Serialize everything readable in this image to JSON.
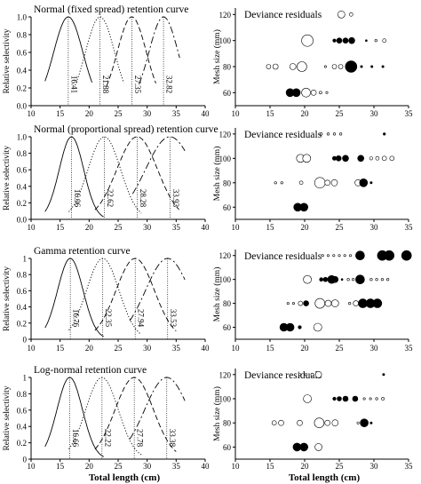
{
  "colors": {
    "ink": "#000000",
    "peak_line": "#000000",
    "axis": "#000000"
  },
  "shared": {
    "xlabel": "Total length (cm)",
    "left_ylabel": "Relative selectivity",
    "right_ylabel": "Mesh size (mm)",
    "right_title": "Deviance residuals"
  },
  "chart_data": [
    {
      "type": "line",
      "title": "Normal (fixed spread) retention curve",
      "xlabel": "",
      "ylabel": "Relative selectivity",
      "xlim": [
        10,
        40
      ],
      "ylim": [
        0,
        1.0
      ],
      "xticks": [
        10,
        15,
        20,
        25,
        30,
        35,
        40
      ],
      "yticks": [
        0,
        0.2,
        0.4,
        0.6,
        0.8,
        1.0
      ],
      "ytick_labels": [
        "0.0",
        "0.2",
        "0.4",
        "0.6",
        "0.8",
        "1.0"
      ],
      "series": [
        {
          "style": "solid",
          "mode": 16.41,
          "spread": 2.5,
          "x_range": [
            12.4,
            20.5
          ]
        },
        {
          "style": "dotted",
          "mode": 21.88,
          "spread": 2.5,
          "x_range": [
            17.6,
            26
          ]
        },
        {
          "style": "dashed",
          "mode": 27.35,
          "spread": 2.5,
          "x_range": [
            23,
            31.5
          ]
        },
        {
          "style": "dashdot",
          "mode": 32.82,
          "spread": 2.5,
          "x_range": [
            28.6,
            35.6
          ]
        }
      ],
      "peak_labels": [
        "16.41",
        "21.88",
        "27.35",
        "32.82"
      ]
    },
    {
      "type": "scatter",
      "title": "Deviance residuals",
      "xlabel": "",
      "ylabel": "Mesh size (mm)",
      "xlim": [
        10,
        35
      ],
      "ylim": [
        50,
        125
      ],
      "xticks": [
        10,
        15,
        20,
        25,
        30,
        35
      ],
      "yticks": [
        60,
        80,
        100,
        120
      ],
      "points": [
        {
          "x": 25.3,
          "y": 120,
          "r": 4,
          "sign": "pos"
        },
        {
          "x": 26.7,
          "y": 120,
          "r": 2,
          "sign": "pos"
        },
        {
          "x": 20.4,
          "y": 100,
          "r": 6.5,
          "sign": "pos"
        },
        {
          "x": 24.3,
          "y": 100,
          "r": 1.8,
          "sign": "neg"
        },
        {
          "x": 25.0,
          "y": 100,
          "r": 3,
          "sign": "neg"
        },
        {
          "x": 25.9,
          "y": 100,
          "r": 3,
          "sign": "neg"
        },
        {
          "x": 26.8,
          "y": 100,
          "r": 3.5,
          "sign": "neg"
        },
        {
          "x": 28.9,
          "y": 100,
          "r": 1,
          "sign": "neg"
        },
        {
          "x": 30.3,
          "y": 100,
          "r": 1.3,
          "sign": "pos"
        },
        {
          "x": 31.5,
          "y": 100,
          "r": 2,
          "sign": "pos"
        },
        {
          "x": 14.8,
          "y": 80,
          "r": 2.5,
          "sign": "pos"
        },
        {
          "x": 15.8,
          "y": 80,
          "r": 3,
          "sign": "pos"
        },
        {
          "x": 18.3,
          "y": 80,
          "r": 3.5,
          "sign": "pos"
        },
        {
          "x": 19.6,
          "y": 80,
          "r": 5.5,
          "sign": "pos"
        },
        {
          "x": 23.0,
          "y": 80,
          "r": 1.2,
          "sign": "pos"
        },
        {
          "x": 24.3,
          "y": 80,
          "r": 2.5,
          "sign": "pos"
        },
        {
          "x": 25.2,
          "y": 80,
          "r": 2.5,
          "sign": "pos"
        },
        {
          "x": 26.7,
          "y": 80,
          "r": 6.5,
          "sign": "neg"
        },
        {
          "x": 28.2,
          "y": 80,
          "r": 1.2,
          "sign": "neg"
        },
        {
          "x": 29.7,
          "y": 80,
          "r": 1.2,
          "sign": "neg"
        },
        {
          "x": 31.3,
          "y": 80,
          "r": 1.2,
          "sign": "neg"
        },
        {
          "x": 17.9,
          "y": 60,
          "r": 4.5,
          "sign": "neg"
        },
        {
          "x": 18.8,
          "y": 60,
          "r": 4.5,
          "sign": "neg"
        },
        {
          "x": 20.2,
          "y": 60,
          "r": 5,
          "sign": "pos"
        },
        {
          "x": 21.3,
          "y": 60,
          "r": 3,
          "sign": "pos"
        },
        {
          "x": 22.3,
          "y": 60,
          "r": 1.5,
          "sign": "pos"
        },
        {
          "x": 23.2,
          "y": 60,
          "r": 1.2,
          "sign": "pos"
        }
      ]
    },
    {
      "type": "line",
      "title": "Normal (proportional spread) retention curve",
      "xlabel": "",
      "ylabel": "Relative selectivity",
      "xlim": [
        10,
        40
      ],
      "ylim": [
        0,
        1.0
      ],
      "xticks": [
        10,
        15,
        20,
        25,
        30,
        35,
        40
      ],
      "yticks": [
        0,
        0.2,
        0.4,
        0.6,
        0.8,
        1.0
      ],
      "ytick_labels": [
        "0.0",
        "0.2",
        "0.4",
        "0.6",
        "0.8",
        "1.0"
      ],
      "series": [
        {
          "style": "solid",
          "mode": 16.96,
          "spread": 2.1,
          "x_range": [
            12.4,
            22.5
          ]
        },
        {
          "style": "dotted",
          "mode": 22.62,
          "spread": 2.8,
          "x_range": [
            16.5,
            29
          ]
        },
        {
          "style": "dashed",
          "mode": 28.28,
          "spread": 3.5,
          "x_range": [
            21,
            35.5
          ]
        },
        {
          "style": "dashdot",
          "mode": 33.93,
          "spread": 4.2,
          "x_range": [
            27.5,
            36.5
          ]
        }
      ],
      "peak_labels": [
        "16.96",
        "22.62",
        "28.28",
        "33.93"
      ]
    },
    {
      "type": "scatter",
      "title": "Deviance residuals",
      "xlabel": "",
      "ylabel": "Mesh size (mm)",
      "xlim": [
        10,
        35
      ],
      "ylim": [
        50,
        125
      ],
      "xticks": [
        10,
        15,
        20,
        25,
        30,
        35
      ],
      "yticks": [
        60,
        80,
        100,
        120
      ],
      "points": [
        {
          "x": 22.4,
          "y": 120,
          "r": 1.3,
          "sign": "pos"
        },
        {
          "x": 23.4,
          "y": 120,
          "r": 1.3,
          "sign": "pos"
        },
        {
          "x": 24.3,
          "y": 120,
          "r": 1.3,
          "sign": "pos"
        },
        {
          "x": 25.2,
          "y": 120,
          "r": 1.3,
          "sign": "pos"
        },
        {
          "x": 31.5,
          "y": 120,
          "r": 1.3,
          "sign": "neg"
        },
        {
          "x": 19.4,
          "y": 100,
          "r": 4.5,
          "sign": "pos"
        },
        {
          "x": 20.3,
          "y": 100,
          "r": 4.5,
          "sign": "pos"
        },
        {
          "x": 24.3,
          "y": 100,
          "r": 2.2,
          "sign": "neg"
        },
        {
          "x": 24.9,
          "y": 100,
          "r": 3,
          "sign": "neg"
        },
        {
          "x": 25.9,
          "y": 100,
          "r": 3.5,
          "sign": "neg"
        },
        {
          "x": 28.1,
          "y": 100,
          "r": 3.5,
          "sign": "neg"
        },
        {
          "x": 29.6,
          "y": 100,
          "r": 1.8,
          "sign": "pos"
        },
        {
          "x": 30.5,
          "y": 100,
          "r": 2,
          "sign": "pos"
        },
        {
          "x": 31.5,
          "y": 100,
          "r": 2.5,
          "sign": "pos"
        },
        {
          "x": 32.6,
          "y": 100,
          "r": 2.5,
          "sign": "pos"
        },
        {
          "x": 15.8,
          "y": 80,
          "r": 1.3,
          "sign": "pos"
        },
        {
          "x": 16.7,
          "y": 80,
          "r": 1.3,
          "sign": "pos"
        },
        {
          "x": 19.5,
          "y": 80,
          "r": 2,
          "sign": "pos"
        },
        {
          "x": 22.2,
          "y": 80,
          "r": 6,
          "sign": "pos"
        },
        {
          "x": 23.3,
          "y": 80,
          "r": 3,
          "sign": "pos"
        },
        {
          "x": 24.3,
          "y": 80,
          "r": 3.5,
          "sign": "pos"
        },
        {
          "x": 27.7,
          "y": 80,
          "r": 3.5,
          "sign": "pos"
        },
        {
          "x": 28.5,
          "y": 80,
          "r": 4.5,
          "sign": "neg"
        },
        {
          "x": 29.6,
          "y": 80,
          "r": 1.2,
          "sign": "neg"
        },
        {
          "x": 19.0,
          "y": 60,
          "r": 4.5,
          "sign": "neg"
        },
        {
          "x": 19.9,
          "y": 60,
          "r": 4.5,
          "sign": "neg"
        }
      ]
    },
    {
      "type": "line",
      "title": "Gamma retention curve",
      "xlabel": "",
      "ylabel": "Relative selectivity",
      "xlim": [
        10,
        40
      ],
      "ylim": [
        0,
        1.0
      ],
      "xticks": [
        10,
        15,
        20,
        25,
        30,
        35,
        40
      ],
      "yticks": [
        0,
        0.2,
        0.4,
        0.6,
        0.8,
        1.0
      ],
      "ytick_labels": [
        "0",
        "0.2",
        "0.4",
        "0.6",
        "0.8",
        "1"
      ],
      "series": [
        {
          "style": "solid",
          "mode": 16.76,
          "spread": 2.2,
          "x_range": [
            12.4,
            22.5
          ]
        },
        {
          "style": "dotted",
          "mode": 22.35,
          "spread": 2.8,
          "x_range": [
            16.5,
            29
          ]
        },
        {
          "style": "dashed",
          "mode": 27.94,
          "spread": 3.3,
          "x_range": [
            21,
            35
          ]
        },
        {
          "style": "dashdot",
          "mode": 33.53,
          "spread": 3.8,
          "x_range": [
            27,
            36.5
          ]
        }
      ],
      "peak_labels": [
        "16.76",
        "22.35",
        "27.94",
        "33.53"
      ]
    },
    {
      "type": "scatter",
      "title": "Deviance residuals",
      "xlabel": "",
      "ylabel": "Mesh size (mm)",
      "xlim": [
        10,
        35
      ],
      "ylim": [
        50,
        125
      ],
      "xticks": [
        10,
        15,
        20,
        25,
        30,
        35
      ],
      "yticks": [
        60,
        80,
        100,
        120
      ],
      "points": [
        {
          "x": 22.6,
          "y": 120,
          "r": 1.2,
          "sign": "pos"
        },
        {
          "x": 23.4,
          "y": 120,
          "r": 1.2,
          "sign": "pos"
        },
        {
          "x": 24.2,
          "y": 120,
          "r": 1.2,
          "sign": "pos"
        },
        {
          "x": 25.0,
          "y": 120,
          "r": 1.2,
          "sign": "pos"
        },
        {
          "x": 25.8,
          "y": 120,
          "r": 1.2,
          "sign": "pos"
        },
        {
          "x": 26.6,
          "y": 120,
          "r": 1.2,
          "sign": "pos"
        },
        {
          "x": 28.0,
          "y": 120,
          "r": 5,
          "sign": "neg"
        },
        {
          "x": 31.2,
          "y": 120,
          "r": 5.5,
          "sign": "neg"
        },
        {
          "x": 32.2,
          "y": 120,
          "r": 5.5,
          "sign": "neg"
        },
        {
          "x": 34.7,
          "y": 120,
          "r": 5.5,
          "sign": "neg"
        },
        {
          "x": 20.4,
          "y": 100,
          "r": 4.5,
          "sign": "pos"
        },
        {
          "x": 22.4,
          "y": 100,
          "r": 2,
          "sign": "neg"
        },
        {
          "x": 23.0,
          "y": 100,
          "r": 2.5,
          "sign": "neg"
        },
        {
          "x": 23.9,
          "y": 100,
          "r": 4.5,
          "sign": "neg"
        },
        {
          "x": 24.4,
          "y": 100,
          "r": 3.5,
          "sign": "neg"
        },
        {
          "x": 25.4,
          "y": 100,
          "r": 1,
          "sign": "neg"
        },
        {
          "x": 26.3,
          "y": 100,
          "r": 1.3,
          "sign": "pos"
        },
        {
          "x": 27.0,
          "y": 100,
          "r": 1.3,
          "sign": "pos"
        },
        {
          "x": 28.0,
          "y": 100,
          "r": 5,
          "sign": "neg"
        },
        {
          "x": 29.6,
          "y": 100,
          "r": 1.3,
          "sign": "pos"
        },
        {
          "x": 30.4,
          "y": 100,
          "r": 1.3,
          "sign": "pos"
        },
        {
          "x": 31.2,
          "y": 100,
          "r": 1.3,
          "sign": "pos"
        },
        {
          "x": 32.0,
          "y": 100,
          "r": 1.3,
          "sign": "pos"
        },
        {
          "x": 17.6,
          "y": 80,
          "r": 1.2,
          "sign": "pos"
        },
        {
          "x": 18.4,
          "y": 80,
          "r": 1.2,
          "sign": "pos"
        },
        {
          "x": 19.4,
          "y": 80,
          "r": 2.5,
          "sign": "pos"
        },
        {
          "x": 20.2,
          "y": 80,
          "r": 3,
          "sign": "neg"
        },
        {
          "x": 22.2,
          "y": 80,
          "r": 5.5,
          "sign": "pos"
        },
        {
          "x": 23.4,
          "y": 80,
          "r": 3.5,
          "sign": "pos"
        },
        {
          "x": 24.4,
          "y": 80,
          "r": 4,
          "sign": "pos"
        },
        {
          "x": 26.5,
          "y": 80,
          "r": 1.3,
          "sign": "pos"
        },
        {
          "x": 27.4,
          "y": 80,
          "r": 3,
          "sign": "pos"
        },
        {
          "x": 28.4,
          "y": 80,
          "r": 5,
          "sign": "neg"
        },
        {
          "x": 29.5,
          "y": 80,
          "r": 5,
          "sign": "neg"
        },
        {
          "x": 30.5,
          "y": 80,
          "r": 5,
          "sign": "neg"
        },
        {
          "x": 17.0,
          "y": 60,
          "r": 4.5,
          "sign": "neg"
        },
        {
          "x": 17.9,
          "y": 60,
          "r": 4.5,
          "sign": "neg"
        },
        {
          "x": 19.3,
          "y": 60,
          "r": 1.8,
          "sign": "neg"
        },
        {
          "x": 21.9,
          "y": 60,
          "r": 4.5,
          "sign": "pos"
        }
      ]
    },
    {
      "type": "line",
      "title": "Log-normal retention curve",
      "xlabel": "",
      "ylabel": "Relative selectivity",
      "xlim": [
        10,
        40
      ],
      "ylim": [
        0,
        1.0
      ],
      "xticks": [
        10,
        15,
        20,
        25,
        30,
        35,
        40
      ],
      "yticks": [
        0,
        0.2,
        0.4,
        0.6,
        0.8,
        1.0
      ],
      "ytick_labels": [
        "0",
        "0.2",
        "0.4",
        "0.6",
        "0.8",
        "1"
      ],
      "series": [
        {
          "style": "solid",
          "mode": 16.66,
          "spread": 2.2,
          "x_range": [
            12.4,
            22.5
          ]
        },
        {
          "style": "dotted",
          "mode": 22.22,
          "spread": 2.8,
          "x_range": [
            16.5,
            29
          ]
        },
        {
          "style": "dashed",
          "mode": 27.78,
          "spread": 3.3,
          "x_range": [
            21,
            35
          ]
        },
        {
          "style": "dashdot",
          "mode": 33.38,
          "spread": 3.8,
          "x_range": [
            27,
            36.5
          ]
        }
      ],
      "peak_labels": [
        "16.66",
        "22.22",
        "27.78",
        "33.38"
      ]
    },
    {
      "type": "scatter",
      "title": "Deviance residuals",
      "xlabel": "",
      "ylabel": "Mesh size (mm)",
      "xlim": [
        10,
        35
      ],
      "ylim": [
        50,
        125
      ],
      "xticks": [
        10,
        15,
        20,
        25,
        30,
        35
      ],
      "yticks": [
        60,
        80,
        100,
        120
      ],
      "points": [
        {
          "x": 19.3,
          "y": 120,
          "r": 1.3,
          "sign": "pos"
        },
        {
          "x": 20.2,
          "y": 120,
          "r": 1.3,
          "sign": "pos"
        },
        {
          "x": 21.1,
          "y": 120,
          "r": 1.6,
          "sign": "pos"
        },
        {
          "x": 22.0,
          "y": 120,
          "r": 3.5,
          "sign": "pos"
        },
        {
          "x": 31.4,
          "y": 120,
          "r": 1.2,
          "sign": "neg"
        },
        {
          "x": 20.4,
          "y": 100,
          "r": 4.5,
          "sign": "pos"
        },
        {
          "x": 24.3,
          "y": 100,
          "r": 1.8,
          "sign": "neg"
        },
        {
          "x": 25.0,
          "y": 100,
          "r": 2.5,
          "sign": "neg"
        },
        {
          "x": 25.9,
          "y": 100,
          "r": 3,
          "sign": "neg"
        },
        {
          "x": 27.3,
          "y": 100,
          "r": 3,
          "sign": "neg"
        },
        {
          "x": 28.6,
          "y": 100,
          "r": 1.2,
          "sign": "pos"
        },
        {
          "x": 29.5,
          "y": 100,
          "r": 1.2,
          "sign": "pos"
        },
        {
          "x": 30.4,
          "y": 100,
          "r": 1.3,
          "sign": "pos"
        },
        {
          "x": 31.3,
          "y": 100,
          "r": 1.6,
          "sign": "pos"
        },
        {
          "x": 15.6,
          "y": 80,
          "r": 2.5,
          "sign": "pos"
        },
        {
          "x": 16.6,
          "y": 80,
          "r": 3,
          "sign": "pos"
        },
        {
          "x": 19.3,
          "y": 80,
          "r": 3,
          "sign": "pos"
        },
        {
          "x": 22.1,
          "y": 80,
          "r": 5.5,
          "sign": "pos"
        },
        {
          "x": 23.3,
          "y": 80,
          "r": 3,
          "sign": "pos"
        },
        {
          "x": 24.4,
          "y": 80,
          "r": 3.5,
          "sign": "pos"
        },
        {
          "x": 27.7,
          "y": 80,
          "r": 1.2,
          "sign": "pos"
        },
        {
          "x": 28.6,
          "y": 80,
          "r": 4.5,
          "sign": "neg"
        },
        {
          "x": 29.6,
          "y": 80,
          "r": 1.2,
          "sign": "neg"
        },
        {
          "x": 18.9,
          "y": 60,
          "r": 4.5,
          "sign": "neg"
        },
        {
          "x": 19.9,
          "y": 60,
          "r": 4.5,
          "sign": "neg"
        },
        {
          "x": 22.0,
          "y": 60,
          "r": 4,
          "sign": "pos"
        }
      ]
    }
  ]
}
